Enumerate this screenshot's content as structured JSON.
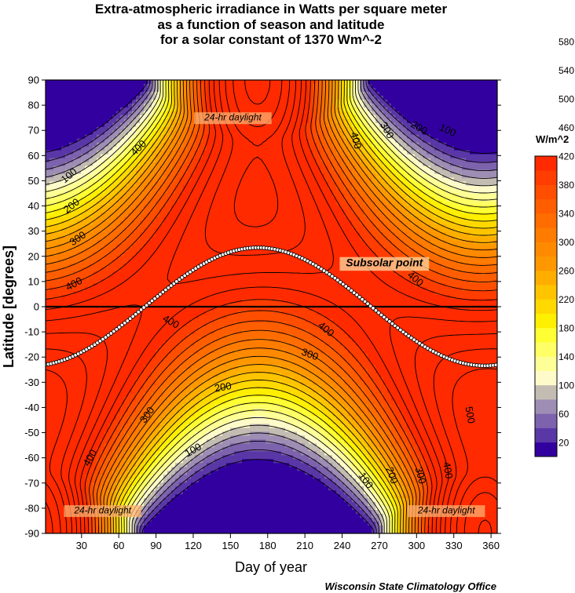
{
  "chart_data": {
    "type": "heatmap",
    "title": [
      "Extra-atmospheric irradiance in Watts per square meter",
      "as a function of season and latitude",
      "for a solar constant of 1370 Wm^-2"
    ],
    "xlabel": "Day of year",
    "ylabel": "Latitude [degrees]",
    "xlim": [
      1,
      365
    ],
    "ylim": [
      -90,
      90
    ],
    "x_ticks": [
      30,
      60,
      90,
      120,
      150,
      180,
      210,
      240,
      270,
      300,
      330,
      360
    ],
    "y_ticks": [
      -90,
      -80,
      -70,
      -60,
      -50,
      -40,
      -30,
      -20,
      -10,
      0,
      10,
      20,
      30,
      40,
      50,
      60,
      70,
      80,
      90
    ],
    "solar_constant": 1370,
    "colorbar": {
      "title": "W/m^2",
      "labels": [
        20,
        60,
        100,
        140,
        180,
        220,
        260,
        300,
        340,
        380,
        420,
        460,
        500,
        540,
        580
      ],
      "colors": [
        "#3300a0",
        "#5a37a6",
        "#7d62ad",
        "#9e8db4",
        "#c2bcb2",
        "#fffaca",
        "#ffff97",
        "#ffff66",
        "#ffff33",
        "#ffef00",
        "#ffd900",
        "#ffc400",
        "#ffae00",
        "#ff9800",
        "#ff8a00",
        "#ff7c00",
        "#ff6d00",
        "#ff5e00",
        "#ff4e00",
        "#ff3d00",
        "#ff2a00"
      ]
    },
    "contour_labels": [
      {
        "text": "100",
        "x": 20,
        "y": 52,
        "angle": -40
      },
      {
        "text": "200",
        "x": 22,
        "y": 40,
        "angle": -38
      },
      {
        "text": "300",
        "x": 27,
        "y": 27,
        "angle": -35
      },
      {
        "text": "400",
        "x": 24,
        "y": 9,
        "angle": -28
      },
      {
        "text": "400",
        "x": 76,
        "y": 63,
        "angle": -45
      },
      {
        "text": "400",
        "x": 251,
        "y": 66,
        "angle": 75
      },
      {
        "text": "300",
        "x": 276,
        "y": 70,
        "angle": 60
      },
      {
        "text": "200",
        "x": 302,
        "y": 71,
        "angle": 30
      },
      {
        "text": "100",
        "x": 325,
        "y": 70,
        "angle": 25
      },
      {
        "text": "400",
        "x": 299,
        "y": 11,
        "angle": 40
      },
      {
        "text": "400",
        "x": 102,
        "y": -6,
        "angle": 30
      },
      {
        "text": "400",
        "x": 227,
        "y": -9,
        "angle": 40
      },
      {
        "text": "300",
        "x": 214,
        "y": -19,
        "angle": 20
      },
      {
        "text": "200",
        "x": 144,
        "y": -32,
        "angle": -10
      },
      {
        "text": "300",
        "x": 83,
        "y": -43,
        "angle": -55
      },
      {
        "text": "100",
        "x": 120,
        "y": -57,
        "angle": -30
      },
      {
        "text": "400",
        "x": 37,
        "y": -60,
        "angle": -60
      },
      {
        "text": "500",
        "x": 343,
        "y": -43,
        "angle": 80
      },
      {
        "text": "100",
        "x": 259,
        "y": -69,
        "angle": 55
      },
      {
        "text": "200",
        "x": 280,
        "y": -67,
        "angle": 70
      },
      {
        "text": "300",
        "x": 303,
        "y": -67,
        "angle": 75
      },
      {
        "text": "400",
        "x": 325,
        "y": -65,
        "angle": 80
      }
    ],
    "annotations": [
      {
        "text": "24-hr daylight",
        "x": 152,
        "y": 74
      },
      {
        "text": "24-hr daylight",
        "x": 47,
        "y": -82
      },
      {
        "text": "24-hr daylight",
        "x": 324,
        "y": -82
      },
      {
        "text": "Subsolar point",
        "x": 274,
        "y": 16
      }
    ]
  },
  "credit": "Wisconsin State Climatology Office"
}
